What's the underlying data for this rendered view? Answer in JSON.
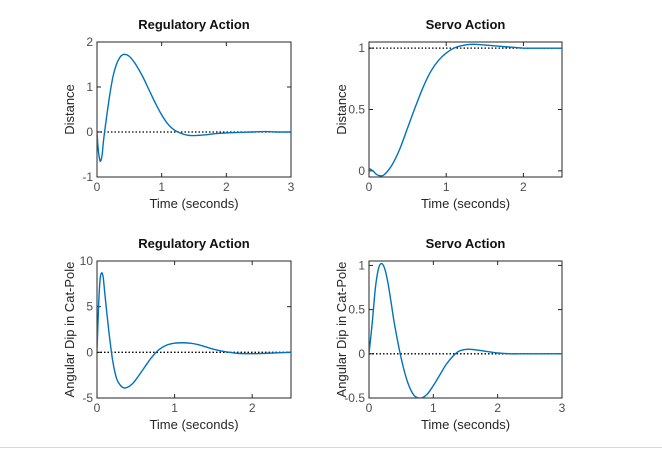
{
  "chart_data": [
    {
      "type": "line",
      "title": "Regulatory Action",
      "xlabel": "Time (seconds)",
      "ylabel": "Distance",
      "xlim": [
        0,
        3
      ],
      "ylim": [
        -1,
        2
      ],
      "xticks": [
        0,
        1,
        2,
        3
      ],
      "xtick_labels": [
        "0",
        "1",
        "2",
        "3"
      ],
      "yticks": [
        -1,
        0,
        1,
        2
      ],
      "ytick_labels": [
        "-1",
        "0",
        "1",
        "2"
      ],
      "reference_line": 0,
      "grid": false,
      "series": [
        {
          "x": [
            0,
            0.02,
            0.05,
            0.08,
            0.1,
            0.15,
            0.2,
            0.25,
            0.3,
            0.35,
            0.4,
            0.45,
            0.5,
            0.55,
            0.6,
            0.7,
            0.8,
            0.9,
            1.0,
            1.1,
            1.2,
            1.3,
            1.4,
            1.5,
            1.6,
            1.7,
            1.8,
            2.0,
            2.2,
            2.4,
            2.6,
            2.8,
            3.0
          ],
          "values": [
            0,
            -0.4,
            -0.65,
            -0.5,
            -0.2,
            0.35,
            0.85,
            1.25,
            1.5,
            1.65,
            1.72,
            1.72,
            1.68,
            1.6,
            1.5,
            1.25,
            0.95,
            0.65,
            0.38,
            0.17,
            0.04,
            -0.03,
            -0.07,
            -0.08,
            -0.07,
            -0.06,
            -0.04,
            -0.02,
            -0.01,
            0.0,
            0.01,
            0.0,
            0.0
          ]
        }
      ]
    },
    {
      "type": "line",
      "title": "Servo Action",
      "xlabel": "Time (seconds)",
      "ylabel": "Distance",
      "xlim": [
        0,
        2.5
      ],
      "ylim": [
        -0.05,
        1.05
      ],
      "xticks": [
        0,
        1,
        2
      ],
      "xtick_labels": [
        "0",
        "1",
        "2"
      ],
      "yticks": [
        0,
        0.5,
        1
      ],
      "ytick_labels": [
        "0",
        "0.5",
        "1"
      ],
      "reference_line": 1,
      "grid": false,
      "series": [
        {
          "x": [
            0,
            0.05,
            0.1,
            0.15,
            0.2,
            0.3,
            0.4,
            0.5,
            0.6,
            0.7,
            0.8,
            0.9,
            1.0,
            1.1,
            1.2,
            1.3,
            1.4,
            1.6,
            1.8,
            2.0,
            2.2,
            2.4,
            2.5
          ],
          "values": [
            0.02,
            0.0,
            -0.03,
            -0.04,
            -0.03,
            0.05,
            0.18,
            0.35,
            0.52,
            0.68,
            0.81,
            0.9,
            0.96,
            1.0,
            1.02,
            1.03,
            1.03,
            1.02,
            1.01,
            1.0,
            1.0,
            1.0,
            1.0
          ]
        }
      ]
    },
    {
      "type": "line",
      "title": "Regulatory Action",
      "xlabel": "Time (seconds)",
      "ylabel": "Angular Dip in Cat-Pole",
      "xlim": [
        0,
        2.5
      ],
      "ylim": [
        -5,
        10
      ],
      "xticks": [
        0,
        1,
        2
      ],
      "xtick_labels": [
        "0",
        "1",
        "2"
      ],
      "yticks": [
        -5,
        0,
        5,
        10
      ],
      "ytick_labels": [
        "-5",
        "0",
        "5",
        "10"
      ],
      "reference_line": 0,
      "grid": false,
      "series": [
        {
          "x": [
            0,
            0.02,
            0.04,
            0.06,
            0.08,
            0.1,
            0.15,
            0.2,
            0.25,
            0.3,
            0.35,
            0.4,
            0.45,
            0.5,
            0.6,
            0.7,
            0.8,
            0.9,
            1.0,
            1.1,
            1.2,
            1.3,
            1.4,
            1.5,
            1.6,
            1.8,
            2.0,
            2.2,
            2.5
          ],
          "values": [
            0,
            5,
            8,
            8.7,
            8.2,
            6.5,
            2.5,
            -0.8,
            -2.8,
            -3.6,
            -3.9,
            -3.8,
            -3.5,
            -3.0,
            -1.8,
            -0.6,
            0.3,
            0.8,
            1.0,
            1.05,
            1.0,
            0.85,
            0.6,
            0.35,
            0.15,
            -0.1,
            -0.15,
            -0.1,
            0.0
          ]
        }
      ]
    },
    {
      "type": "line",
      "title": "Servo Action",
      "xlabel": "Time (seconds)",
      "ylabel": "Angular Dip in Cat-Pole",
      "xlim": [
        0,
        3
      ],
      "ylim": [
        -0.5,
        1.05
      ],
      "xticks": [
        0,
        1,
        2,
        3
      ],
      "xtick_labels": [
        "0",
        "1",
        "2",
        "3"
      ],
      "yticks": [
        -0.5,
        0,
        0.5,
        1
      ],
      "ytick_labels": [
        "-0.5",
        "0",
        "0.5",
        "1"
      ],
      "reference_line": 0,
      "grid": false,
      "series": [
        {
          "x": [
            0,
            0.05,
            0.1,
            0.15,
            0.2,
            0.25,
            0.3,
            0.35,
            0.4,
            0.5,
            0.6,
            0.7,
            0.8,
            0.9,
            1.0,
            1.1,
            1.2,
            1.3,
            1.4,
            1.5,
            1.6,
            1.8,
            2.0,
            2.2,
            2.4,
            2.6,
            2.8,
            3.0
          ],
          "values": [
            0,
            0.35,
            0.75,
            0.97,
            1.02,
            0.95,
            0.78,
            0.55,
            0.32,
            -0.05,
            -0.32,
            -0.47,
            -0.5,
            -0.46,
            -0.36,
            -0.24,
            -0.12,
            -0.03,
            0.03,
            0.05,
            0.05,
            0.03,
            0.01,
            0.0,
            0.0,
            0.0,
            0.0,
            0.0
          ]
        }
      ]
    }
  ]
}
